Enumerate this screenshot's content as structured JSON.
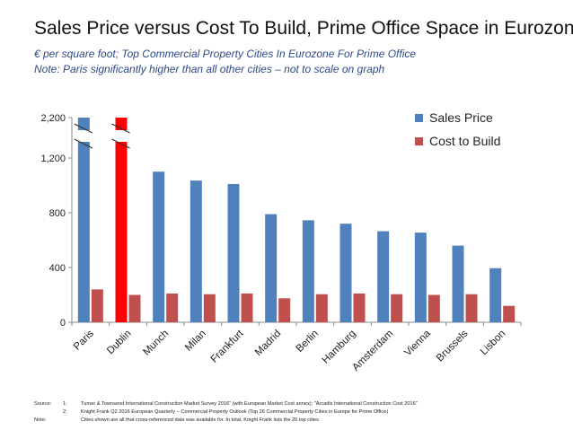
{
  "title": "Sales Price versus Cost To Build, Prime Office Space in Eurozone",
  "subtitle_1": "€ per square foot; Top Commercial Property Cities In Eurozone For Prime Office",
  "subtitle_2": "Note: Paris significantly higher than all other cities – not to scale on graph",
  "colors": {
    "sales": "#4f81bd",
    "cost": "#c0504d",
    "highlight": "#ff0000"
  },
  "chart_data": {
    "type": "bar",
    "categories": [
      "Paris",
      "Dublin",
      "Munch",
      "Milan",
      "Frankfurt",
      "Madrid",
      "Berlin",
      "Hamburg",
      "Amsterdam",
      "Vienna",
      "Brussels",
      "Lisbon"
    ],
    "series": [
      {
        "name": "Sales Price",
        "values": [
          2200,
          1290,
          1100,
          1035,
          1010,
          790,
          745,
          720,
          665,
          655,
          560,
          395
        ]
      },
      {
        "name": "Cost to Build",
        "values": [
          240,
          200,
          210,
          205,
          210,
          175,
          205,
          210,
          205,
          200,
          205,
          120
        ]
      }
    ],
    "highlight": {
      "category": "Dublin",
      "series": "Sales Price"
    },
    "y_ticks": [
      "0",
      "400",
      "800",
      "1,200",
      "2,200"
    ],
    "ylim": [
      0,
      2200
    ],
    "axis_break": "between 1,200 and 2,200",
    "grid": false,
    "legend_position": "top-right"
  },
  "footnotes": {
    "source_label": "Source:",
    "note_label": "Note:",
    "n1": "1:",
    "n2": "2:",
    "line1": "Turner & Townsend International Construction Market Survey 2016\" (with European Market Cost annex); \"Arcadis International Construction Cost 2016\"",
    "line2": "Knight Frank Q2 2016 European Quarterly – Commercial Property Outlook (Top 26 Commercial Property Cities in Europe for Prime Office)",
    "line3": "Cities shown are all that cross-referenced data was available for. In total, Knight Frank lists the 26 top cities"
  }
}
